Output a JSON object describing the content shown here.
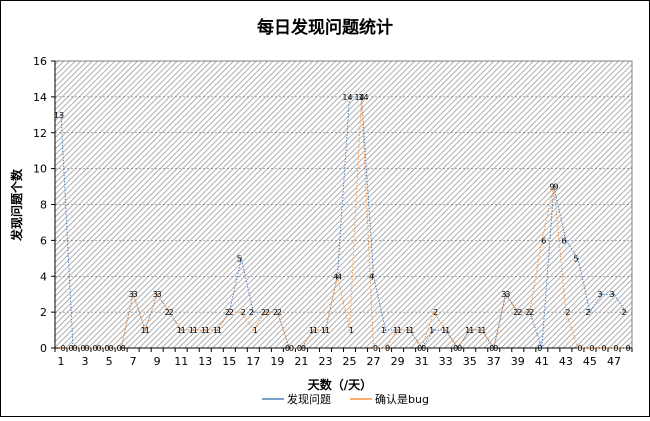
{
  "chart_data": {
    "type": "line",
    "title": "每日发现问题统计",
    "xlabel": "天数（/天）",
    "ylabel": "发现问题个数",
    "ylim": [
      0,
      16
    ],
    "yticks": [
      0,
      2,
      4,
      6,
      8,
      10,
      12,
      14,
      16
    ],
    "xticks": [
      "1",
      "3",
      "5",
      "7",
      "9",
      "11",
      "13",
      "15",
      "17",
      "19",
      "21",
      "23",
      "25",
      "27",
      "29",
      "31",
      "33",
      "35",
      "37",
      "39",
      "41",
      "43",
      "45",
      "47"
    ],
    "x": [
      1,
      2,
      3,
      4,
      5,
      6,
      7,
      8,
      9,
      10,
      11,
      12,
      13,
      14,
      15,
      16,
      17,
      18,
      19,
      20,
      21,
      22,
      23,
      24,
      25,
      26,
      27,
      28,
      29,
      30,
      31,
      32,
      33,
      34,
      35,
      36,
      37,
      38,
      39,
      40,
      41,
      42,
      43,
      44,
      45,
      46,
      47,
      48
    ],
    "grid": "hatched",
    "legend_position": "bottom-right",
    "series": [
      {
        "name": "发现问题",
        "color": "#4F81BD",
        "values": [
          13,
          0,
          0,
          0,
          0,
          0,
          3,
          1,
          3,
          2,
          1,
          1,
          1,
          1,
          2,
          5,
          2,
          2,
          2,
          0,
          0,
          1,
          1,
          4,
          14,
          14,
          4,
          1,
          1,
          1,
          0,
          1,
          1,
          0,
          1,
          1,
          0,
          3,
          2,
          2,
          0,
          9,
          6,
          5,
          2,
          3,
          3,
          2
        ]
      },
      {
        "name": "确认是bug",
        "color": "#F79646",
        "values": [
          0,
          0,
          0,
          0,
          0,
          0,
          3,
          1,
          3,
          2,
          1,
          1,
          1,
          1,
          2,
          2,
          1,
          2,
          2,
          0,
          0,
          1,
          1,
          4,
          1,
          14,
          0,
          0,
          1,
          1,
          0,
          2,
          1,
          0,
          1,
          1,
          0,
          3,
          2,
          2,
          6,
          9,
          2,
          0,
          0,
          0,
          0,
          0
        ]
      }
    ]
  }
}
